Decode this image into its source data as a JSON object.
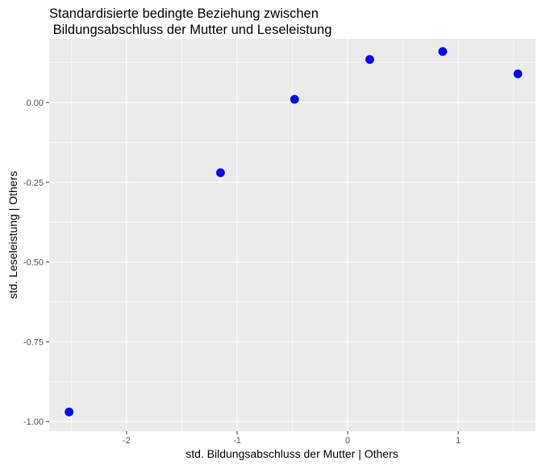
{
  "chart_data": {
    "type": "scatter",
    "title_line1": "Standardisierte bedingte Beziehung zwischen",
    "title_line2": " Bildungsabschluss der Mutter und Leseleistung",
    "xlabel": "std. Bildungsabschluss der Mutter | Others",
    "ylabel": "std. Leseleistung | Others",
    "xlim": [
      -2.7,
      1.7
    ],
    "ylim": [
      -1.03,
      0.2
    ],
    "x_ticks": [
      -2,
      -1,
      0,
      1
    ],
    "x_tick_labels": [
      "-2",
      "-1",
      "0",
      "1"
    ],
    "y_ticks": [
      -1.0,
      -0.75,
      -0.5,
      -0.25,
      0.0
    ],
    "y_tick_labels": [
      "-1.00",
      "-0.75",
      "-0.50",
      "-0.25",
      "0.00"
    ],
    "grid": true,
    "point_color": "#0000ff",
    "panel_color": "#ebebeb",
    "points": [
      {
        "x": -2.52,
        "y": -0.97
      },
      {
        "x": -1.15,
        "y": -0.22
      },
      {
        "x": -0.48,
        "y": 0.01
      },
      {
        "x": 0.2,
        "y": 0.135
      },
      {
        "x": 0.86,
        "y": 0.16
      },
      {
        "x": 1.54,
        "y": 0.09
      }
    ]
  }
}
